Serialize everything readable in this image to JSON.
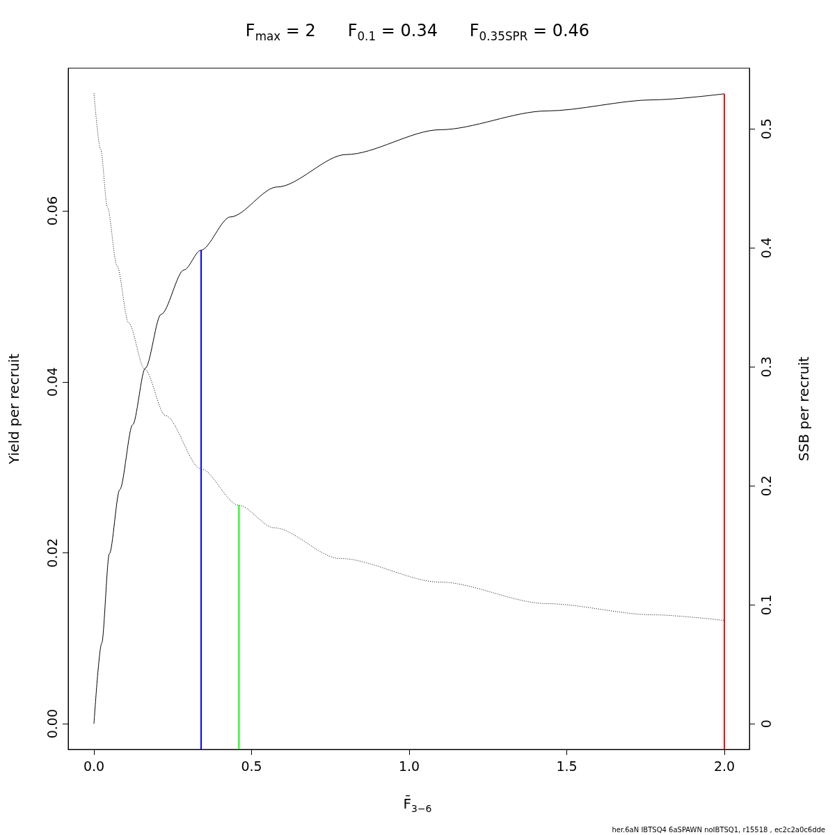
{
  "chart_data": {
    "type": "line",
    "title": "F$_{max}$ = 2      F$_{0.1}$ = 0.34      F$_{0.35SPR}$ = 0.46",
    "xlabel": "F̄$_{3−6}$",
    "ylabel": "Yield per recruit",
    "y2label": "SSB per recruit",
    "annotations": [
      "her.6aN IBTSQ4 6aSPAWN noIBTSQ1, r15518 , ec2c2a0c6dde"
    ],
    "xlim": [
      -0.0817,
      2.0795
    ],
    "xticks": [
      {
        "value": 0,
        "label": "0.0"
      },
      0.5,
      {
        "value": 1,
        "label": "1.0"
      },
      1.5,
      {
        "value": 2,
        "label": "2.0"
      }
    ],
    "ylim": [
      -0.003,
      0.0767
    ],
    "yticks": [
      {
        "value": 0,
        "label": "0.00"
      },
      0.02,
      0.04,
      0.06
    ],
    "y2lim": [
      -0.0215,
      0.551
    ],
    "y2ticks": [
      0,
      0.1,
      0.2,
      0.3,
      0.4,
      0.5
    ],
    "grid": false,
    "marker": "none",
    "series": [
      {
        "color": "#000000",
        "line_style": "solid",
        "x": [
          0,
          0.0245,
          0.049,
          0.082,
          0.123,
          0.163,
          0.213,
          0.286,
          0.339,
          0.433,
          0.581,
          0.801,
          1.099,
          1.437,
          1.775,
          2.0
        ],
        "values": [
          0,
          0.0094,
          0.0199,
          0.0274,
          0.035,
          0.0416,
          0.0479,
          0.0531,
          0.0554,
          0.0593,
          0.0628,
          0.0666,
          0.0695,
          0.0717,
          0.073,
          0.0737
        ]
      },
      {
        "axis": "y2",
        "color": "#000000",
        "line_style": "dotted",
        "x": [
          0,
          0.021,
          0.043,
          0.073,
          0.11,
          0.161,
          0.227,
          0.339,
          0.459,
          0.572,
          0.78,
          1.099,
          1.437,
          1.775,
          2.0
        ],
        "values": [
          0.53,
          0.483,
          0.434,
          0.385,
          0.337,
          0.298,
          0.259,
          0.2144,
          0.1837,
          0.1647,
          0.139,
          0.1191,
          0.101,
          0.0916,
          0.0869
        ]
      },
      {
        "color": "#0000ff",
        "line_style": "solid",
        "x": [
          0.34,
          0.34
        ],
        "values": [
          -0.003,
          0.0554
        ]
      },
      {
        "axis": "y2",
        "color": "#00ff00",
        "line_style": "solid",
        "x": [
          0.46,
          0.46
        ],
        "values": [
          -0.0215,
          0.1837
        ]
      },
      {
        "color": "#ff0000",
        "line_style": "solid",
        "x": [
          2.0,
          2.0
        ],
        "values": [
          -0.003,
          0.0737
        ]
      }
    ]
  }
}
